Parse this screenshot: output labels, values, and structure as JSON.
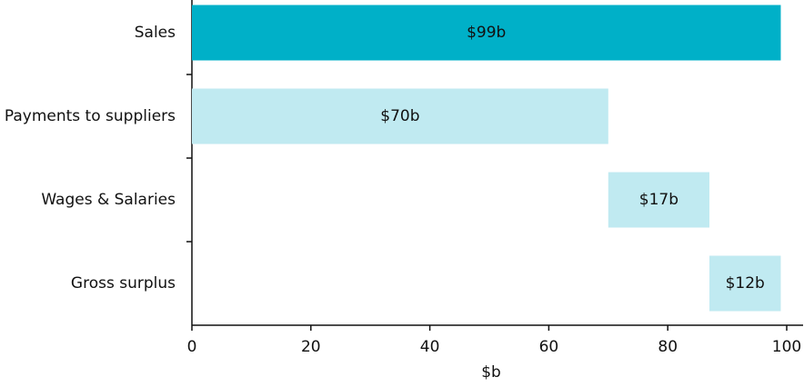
{
  "chart_data": {
    "type": "waterfall",
    "categories": [
      "Sales",
      "Payments to suppliers",
      "Wages & Salaries",
      "Gross surplus"
    ],
    "values": [
      99,
      70,
      17,
      12
    ],
    "value_labels": [
      "$99b",
      "$70b",
      "$17b",
      "$12b"
    ],
    "colors": [
      "#00b0c8",
      "#c0eaf1",
      "#c0eaf1",
      "#c0eaf1"
    ],
    "xlabel": "$b",
    "xlim": [
      0,
      100
    ],
    "xticks": [
      0,
      20,
      40,
      60,
      80,
      100
    ]
  }
}
